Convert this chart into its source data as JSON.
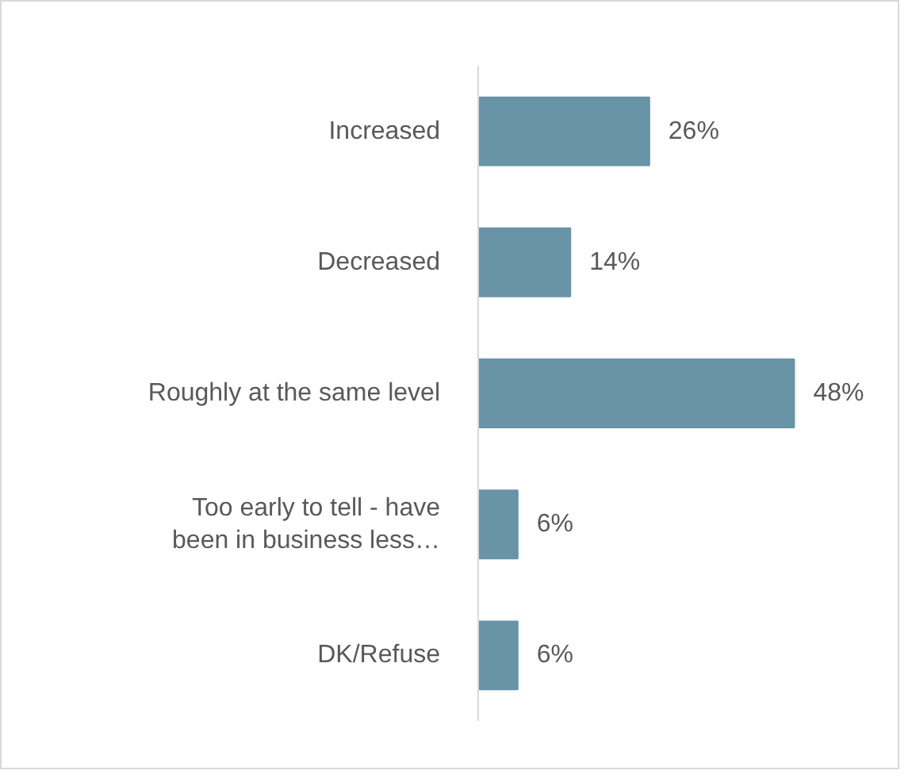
{
  "chart_data": {
    "type": "bar",
    "orientation": "horizontal",
    "categories": [
      "Increased",
      "Decreased",
      "Roughly at the same level",
      "Too early to tell - have been in business less…",
      "DK/Refuse"
    ],
    "values": [
      26,
      14,
      48,
      6,
      6
    ],
    "color": "#6993a6",
    "data_labels": true,
    "value_labels": [
      "26%",
      "14%",
      "48%",
      "6%",
      "6%"
    ]
  }
}
